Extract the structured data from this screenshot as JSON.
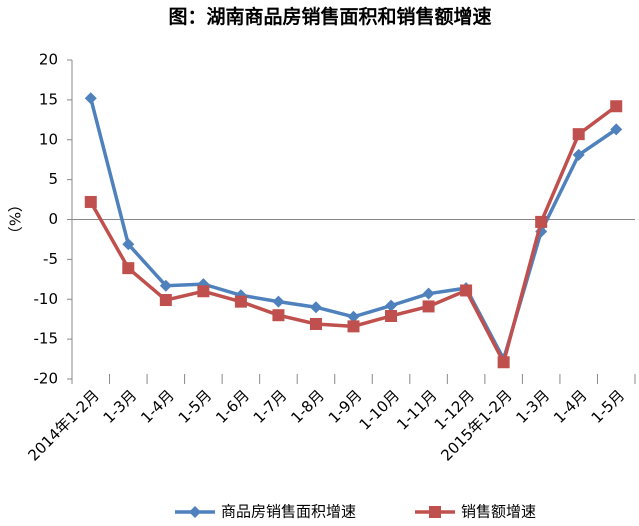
{
  "chart_data": {
    "type": "line",
    "title": "图：湖南商品房销售面积和销售额增速",
    "y_label": "（%）",
    "categories": [
      "2014年1-2月",
      "1-3月",
      "1-4月",
      "1-5月",
      "1-6月",
      "1-7月",
      "1-8月",
      "1-9月",
      "1-10月",
      "1-11月",
      "1-12月",
      "2015年1-2月",
      "1-3月",
      "1-4月",
      "1-5月"
    ],
    "series": [
      {
        "name": "商品房销售面积增速",
        "color": "#4f81bd",
        "marker": "diamond",
        "values": [
          15.2,
          -3.1,
          -8.3,
          -8.1,
          -9.5,
          -10.3,
          -11.0,
          -12.2,
          -10.8,
          -9.3,
          -8.6,
          -17.5,
          -1.5,
          8.1,
          11.3
        ]
      },
      {
        "name": "销售额增速",
        "color": "#c0504d",
        "marker": "square",
        "values": [
          2.2,
          -6.1,
          -10.1,
          -9.0,
          -10.3,
          -12.0,
          -13.1,
          -13.4,
          -12.1,
          -10.9,
          -8.9,
          -17.9,
          -0.3,
          10.7,
          14.2
        ]
      }
    ],
    "ylim": [
      -20,
      20
    ],
    "yticks": [
      -20,
      -15,
      -10,
      -5,
      0,
      5,
      10,
      15,
      20
    ],
    "grid": false,
    "legend": "bottom"
  }
}
